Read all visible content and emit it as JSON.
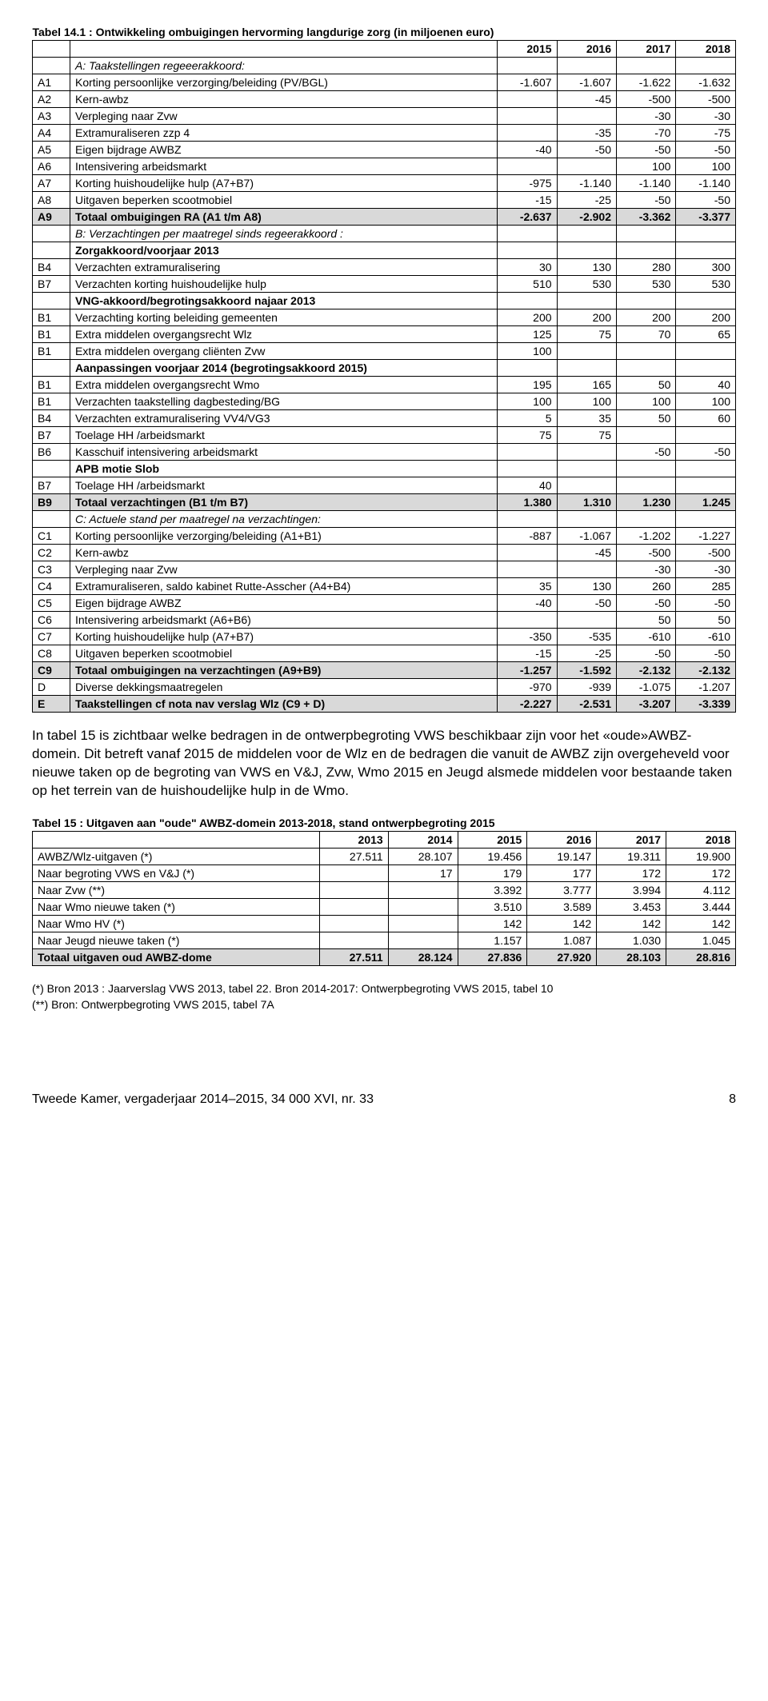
{
  "table14": {
    "title": "Tabel 14.1 : Ontwikkeling ombuigingen hervorming langdurige zorg (in miljoenen euro)",
    "years": [
      "2015",
      "2016",
      "2017",
      "2018"
    ],
    "sectionA": "A: Taakstellingen regeeerakkoord:",
    "rows": [
      {
        "code": "A1",
        "desc": "Korting persoonlijke verzorging/beleiding (PV/BGL)",
        "v": [
          "-1.607",
          "-1.607",
          "-1.622",
          "-1.632"
        ]
      },
      {
        "code": "A2",
        "desc": "Kern-awbz",
        "v": [
          "",
          "-45",
          "-500",
          "-500"
        ]
      },
      {
        "code": "A3",
        "desc": "Verpleging naar Zvw",
        "v": [
          "",
          "",
          "-30",
          "-30"
        ]
      },
      {
        "code": "A4",
        "desc": "Extramuraliseren zzp 4",
        "v": [
          "",
          "-35",
          "-70",
          "-75"
        ]
      },
      {
        "code": "A5",
        "desc": "Eigen bijdrage AWBZ",
        "v": [
          "-40",
          "-50",
          "-50",
          "-50"
        ]
      },
      {
        "code": "A6",
        "desc": "Intensivering arbeidsmarkt",
        "v": [
          "",
          "",
          "100",
          "100"
        ]
      },
      {
        "code": "A7",
        "desc": "Korting huishoudelijke hulp (A7+B7)",
        "v": [
          "-975",
          "-1.140",
          "-1.140",
          "-1.140"
        ]
      },
      {
        "code": "A8",
        "desc": "Uitgaven beperken scootmobiel",
        "v": [
          "-15",
          "-25",
          "-50",
          "-50"
        ]
      }
    ],
    "totalA": {
      "code": "A9",
      "desc": "Totaal ombuigingen RA (A1 t/m A8)",
      "v": [
        "-2.637",
        "-2.902",
        "-3.362",
        "-3.377"
      ]
    },
    "sectionB": "B: Verzachtingen per maatregel sinds regeerakkoord :",
    "subB1": "Zorgakkoord/voorjaar 2013",
    "rowsB1": [
      {
        "code": "B4",
        "desc": "Verzachten extramuralisering",
        "v": [
          "30",
          "130",
          "280",
          "300"
        ]
      },
      {
        "code": "B7",
        "desc": "Verzachten korting huishoudelijke hulp",
        "v": [
          "510",
          "530",
          "530",
          "530"
        ]
      }
    ],
    "subB2": "VNG-akkoord/begrotingsakkoord najaar 2013",
    "rowsB2": [
      {
        "code": "B1",
        "desc": "Verzachting korting beleiding gemeenten",
        "v": [
          "200",
          "200",
          "200",
          "200"
        ]
      },
      {
        "code": "B1",
        "desc": "Extra middelen overgangsrecht Wlz",
        "v": [
          "125",
          "75",
          "70",
          "65"
        ]
      },
      {
        "code": "B1",
        "desc": "Extra middelen overgang cliënten Zvw",
        "v": [
          "100",
          "",
          "",
          ""
        ]
      }
    ],
    "subB3": "Aanpassingen voorjaar 2014 (begrotingsakkoord 2015)",
    "rowsB3": [
      {
        "code": "B1",
        "desc": "Extra middelen overgangsrecht Wmo",
        "v": [
          "195",
          "165",
          "50",
          "40"
        ]
      },
      {
        "code": "B1",
        "desc": "Verzachten taakstelling dagbesteding/BG",
        "v": [
          "100",
          "100",
          "100",
          "100"
        ]
      },
      {
        "code": "B4",
        "desc": "Verzachten extramuralisering VV4/VG3",
        "v": [
          "5",
          "35",
          "50",
          "60"
        ]
      },
      {
        "code": "B7",
        "desc": "Toelage HH /arbeidsmarkt",
        "v": [
          "75",
          "75",
          "",
          ""
        ]
      },
      {
        "code": "B6",
        "desc": "Kasschuif intensivering arbeidsmarkt",
        "v": [
          "",
          "",
          "-50",
          "-50"
        ]
      }
    ],
    "subB4": "APB motie Slob",
    "rowsB4": [
      {
        "code": "B7",
        "desc": "Toelage HH /arbeidsmarkt",
        "v": [
          "40",
          "",
          "",
          ""
        ]
      }
    ],
    "totalB": {
      "code": "B9",
      "desc": "Totaal verzachtingen (B1 t/m B7)",
      "v": [
        "1.380",
        "1.310",
        "1.230",
        "1.245"
      ]
    },
    "sectionC": "C: Actuele stand per maatregel na verzachtingen:",
    "rowsC": [
      {
        "code": "C1",
        "desc": "Korting persoonlijke verzorging/beleiding (A1+B1)",
        "v": [
          "-887",
          "-1.067",
          "-1.202",
          "-1.227"
        ]
      },
      {
        "code": "C2",
        "desc": "Kern-awbz",
        "v": [
          "",
          "-45",
          "-500",
          "-500"
        ]
      },
      {
        "code": "C3",
        "desc": "Verpleging naar Zvw",
        "v": [
          "",
          "",
          "-30",
          "-30"
        ]
      },
      {
        "code": "C4",
        "desc": "Extramuraliseren, saldo kabinet Rutte-Asscher (A4+B4)",
        "v": [
          "35",
          "130",
          "260",
          "285"
        ]
      },
      {
        "code": "C5",
        "desc": "Eigen bijdrage AWBZ",
        "v": [
          "-40",
          "-50",
          "-50",
          "-50"
        ]
      },
      {
        "code": "C6",
        "desc": "Intensivering arbeidsmarkt (A6+B6)",
        "v": [
          "",
          "",
          "50",
          "50"
        ]
      },
      {
        "code": "C7",
        "desc": "Korting huishoudelijke hulp (A7+B7)",
        "v": [
          "-350",
          "-535",
          "-610",
          "-610"
        ]
      },
      {
        "code": "C8",
        "desc": "Uitgaven beperken scootmobiel",
        "v": [
          "-15",
          "-25",
          "-50",
          "-50"
        ]
      }
    ],
    "totalC": {
      "code": "C9",
      "desc": "Totaal ombuigingen na verzachtingen (A9+B9)",
      "v": [
        "-1.257",
        "-1.592",
        "-2.132",
        "-2.132"
      ]
    },
    "rowD": {
      "code": "D",
      "desc": "Diverse dekkingsmaatregelen",
      "v": [
        "-970",
        "-939",
        "-1.075",
        "-1.207"
      ]
    },
    "rowE": {
      "code": "E",
      "desc": "Taakstellingen cf nota nav verslag Wlz (C9 + D)",
      "v": [
        "-2.227",
        "-2.531",
        "-3.207",
        "-3.339"
      ]
    }
  },
  "para": "In tabel 15 is zichtbaar welke bedragen in de ontwerpbegroting VWS beschikbaar zijn voor het «oude»AWBZ-domein. Dit betreft vanaf 2015 de middelen voor de Wlz en de bedragen die vanuit de AWBZ zijn overgeheveld voor nieuwe taken op de begroting van VWS en V&J, Zvw, Wmo 2015 en Jeugd alsmede middelen voor bestaande taken op het terrein van de huishoudelijke hulp in de Wmo.",
  "table15": {
    "title": "Tabel 15 : Uitgaven aan \"oude\" AWBZ-domein 2013-2018, stand ontwerpbegroting 2015",
    "years": [
      "2013",
      "2014",
      "2015",
      "2016",
      "2017",
      "2018"
    ],
    "rows": [
      {
        "desc": "AWBZ/Wlz-uitgaven (*)",
        "v": [
          "27.511",
          "28.107",
          "19.456",
          "19.147",
          "19.311",
          "19.900"
        ]
      },
      {
        "desc": "Naar begroting VWS en V&J (*)",
        "v": [
          "",
          "17",
          "179",
          "177",
          "172",
          "172"
        ]
      },
      {
        "desc": "Naar Zvw (**)",
        "v": [
          "",
          "",
          "3.392",
          "3.777",
          "3.994",
          "4.112"
        ]
      },
      {
        "desc": "Naar Wmo nieuwe taken (*)",
        "v": [
          "",
          "",
          "3.510",
          "3.589",
          "3.453",
          "3.444"
        ]
      },
      {
        "desc": "Naar Wmo HV (*)",
        "v": [
          "",
          "",
          "142",
          "142",
          "142",
          "142"
        ]
      },
      {
        "desc": "Naar Jeugd nieuwe taken  (*)",
        "v": [
          "",
          "",
          "1.157",
          "1.087",
          "1.030",
          "1.045"
        ]
      }
    ],
    "total": {
      "desc": "Totaal uitgaven oud AWBZ-dome",
      "v": [
        "27.511",
        "28.124",
        "27.836",
        "27.920",
        "28.103",
        "28.816"
      ]
    },
    "note1": "(*) Bron 2013 : Jaarverslag VWS 2013, tabel 22. Bron 2014-2017: Ontwerpbegroting VWS 2015, tabel 10",
    "note2": "(**) Bron: Ontwerpbegroting VWS 2015, tabel 7A"
  },
  "footer": {
    "left": "Tweede Kamer, vergaderjaar 2014–2015, 34 000 XVI, nr. 33",
    "page": "8"
  }
}
